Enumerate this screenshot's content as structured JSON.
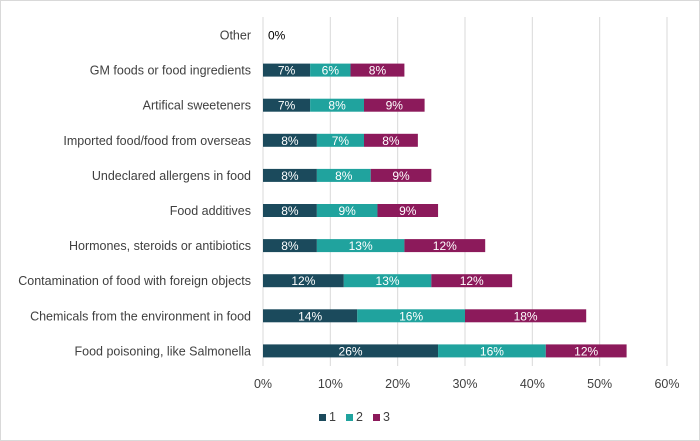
{
  "chart_data": {
    "type": "bar",
    "orientation": "horizontal",
    "stacked": true,
    "categories": [
      "Other",
      "GM foods or food ingredients",
      "Artifical sweeteners",
      "Imported food/food from overseas",
      "Undeclared allergens in food",
      "Food additives",
      "Hormones, steroids or antibiotics",
      "Contamination of food with foreign objects",
      "Chemicals from the environment in food",
      "Food poisoning, like Salmonella"
    ],
    "series": [
      {
        "name": "1",
        "color": "#1b4a5c",
        "values": [
          0,
          7,
          7,
          8,
          8,
          8,
          8,
          12,
          14,
          26
        ]
      },
      {
        "name": "2",
        "color": "#20a39e",
        "values": [
          0,
          6,
          8,
          7,
          8,
          9,
          13,
          13,
          16,
          16
        ]
      },
      {
        "name": "3",
        "color": "#8c1a5b",
        "values": [
          0,
          8,
          9,
          8,
          9,
          9,
          12,
          12,
          18,
          12
        ]
      }
    ],
    "data_labels": [
      [
        "0%",
        "",
        ""
      ],
      [
        "7%",
        "6%",
        "8%"
      ],
      [
        "7%",
        "8%",
        "9%"
      ],
      [
        "8%",
        "7%",
        "8%"
      ],
      [
        "8%",
        "8%",
        "9%"
      ],
      [
        "8%",
        "9%",
        "9%"
      ],
      [
        "8%",
        "13%",
        "12%"
      ],
      [
        "12%",
        "13%",
        "12%"
      ],
      [
        "14%",
        "16%",
        "18%"
      ],
      [
        "26%",
        "16%",
        "12%"
      ]
    ],
    "x_ticks": [
      "0%",
      "10%",
      "20%",
      "30%",
      "40%",
      "50%",
      "60%"
    ],
    "xlim": [
      0,
      60
    ],
    "xgrid": true,
    "legend_position": "bottom",
    "title": "",
    "xlabel": "",
    "ylabel": ""
  }
}
